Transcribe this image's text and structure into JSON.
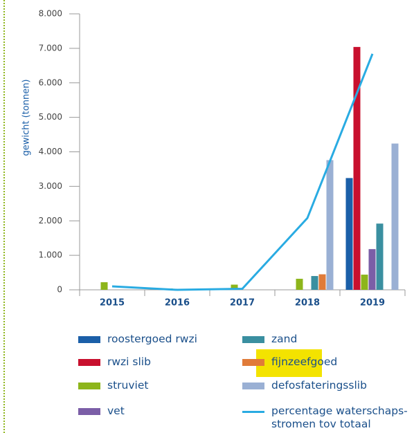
{
  "chart_data": {
    "type": "bar",
    "ylabel": "gewicht (tonnen)",
    "categories": [
      "2015",
      "2016",
      "2017",
      "2018",
      "2019"
    ],
    "ylim": [
      0,
      8000
    ],
    "yticks": [
      0,
      {
        "value": 1000,
        "label": "1.000"
      },
      {
        "value": 2000,
        "label": "2.000"
      },
      {
        "value": 3000,
        "label": "3.000"
      },
      {
        "value": 4000,
        "label": "4.000"
      },
      {
        "value": 5000,
        "label": "5.000"
      },
      {
        "value": 6000,
        "label": "6.000"
      },
      {
        "value": 7000,
        "label": "7.000"
      },
      {
        "value": 8000,
        "label": "8.000"
      }
    ],
    "grid": false,
    "series": [
      {
        "name": "roostergoed rwzi",
        "color": "#1b5fa8",
        "values": [
          null,
          null,
          null,
          null,
          3240
        ]
      },
      {
        "name": "rwzi slib",
        "color": "#c8102e",
        "values": [
          null,
          null,
          null,
          null,
          7040
        ]
      },
      {
        "name": "struviet",
        "color": "#8db51b",
        "values": [
          220,
          40,
          150,
          320,
          440
        ]
      },
      {
        "name": "vet",
        "color": "#7b5ea7",
        "values": [
          null,
          null,
          null,
          null,
          1180
        ]
      },
      {
        "name": "zand",
        "color": "#3a8fa0",
        "values": [
          null,
          null,
          null,
          400,
          1920
        ]
      },
      {
        "name": "fijnzeefgoed",
        "color": "#e07b39",
        "values": [
          null,
          null,
          null,
          450,
          null
        ]
      },
      {
        "name": "defosfateringsslib",
        "color": "#9ab0d4",
        "values": [
          null,
          null,
          null,
          3760,
          4240
        ]
      },
      {
        "name": "percentage waterschaps-stromen tov totaal",
        "color": "#29abe2",
        "type": "line",
        "values": [
          100,
          0,
          30,
          2080,
          6840
        ]
      }
    ]
  }
}
